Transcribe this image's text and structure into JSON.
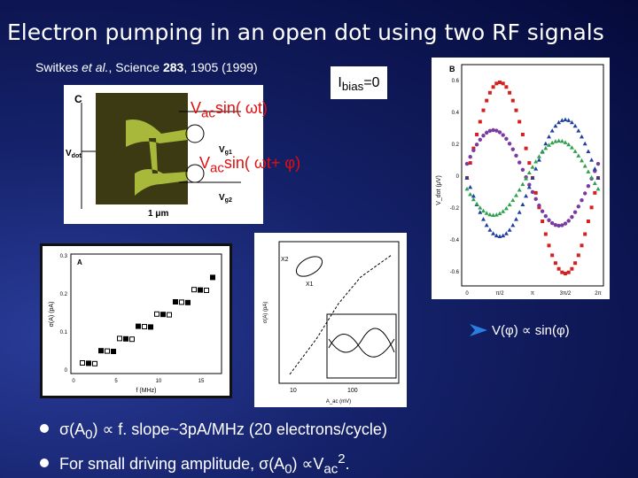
{
  "title": "Electron pumping in an open dot using two RF signals",
  "citation": {
    "authors": "Switkes ",
    "etal": "et al.",
    "journal": ",   Science ",
    "volume": "283",
    "rest": ", 1905 (1999)"
  },
  "ibias": {
    "base": "I",
    "sub": "bias",
    "rest": "=0"
  },
  "figure_c": {
    "label": "C",
    "vdot": "V",
    "vdot_sub": "dot",
    "vg1": "V",
    "vg1_sub": "g1",
    "vg2": "V",
    "vg2_sub": "g2",
    "scale": "1 μm",
    "signal1": {
      "base": "V",
      "sub": "ac",
      "rest": "sin( ωt)"
    },
    "signal2": {
      "base": "V",
      "sub": "ac",
      "rest": "sin( ωt+ φ)"
    }
  },
  "figure_b": {
    "label": "B",
    "ylabel": "V_dot (μV)",
    "yticks": [
      "0.6",
      "0.4",
      "0.2",
      "0",
      "-0.2",
      "-0.4",
      "-0.6"
    ],
    "xticks": [
      "0",
      "π/2",
      "π",
      "3π/2",
      "2π"
    ]
  },
  "figure_a": {
    "label": "A",
    "ylabel": "σ(A) (pA)",
    "xlabel": "f (MHz)",
    "yticks": [
      "0.3",
      "0.2",
      "0.1",
      "0"
    ],
    "xticks": [
      "0",
      "5",
      "10",
      "15"
    ]
  },
  "figure_mid": {
    "ylabel": "σ(A) (pA)",
    "xlabel": "A_ac (mV)",
    "chi2": "X2",
    "chi1": "X1",
    "xticks": [
      "10",
      "100"
    ]
  },
  "relation": "V(φ) ∝ sin(φ)",
  "bullets": [
    {
      "pre": "σ(A",
      "sub": "0",
      "post": ") ∝ f.   slope~3pA/MHz (20 electrons/cycle)"
    },
    {
      "pre": "For small driving amplitude,  σ(A",
      "sub": "0",
      "mid": ") ∝V",
      "sub2": "ac",
      "sup": "2",
      "post": "."
    }
  ]
}
